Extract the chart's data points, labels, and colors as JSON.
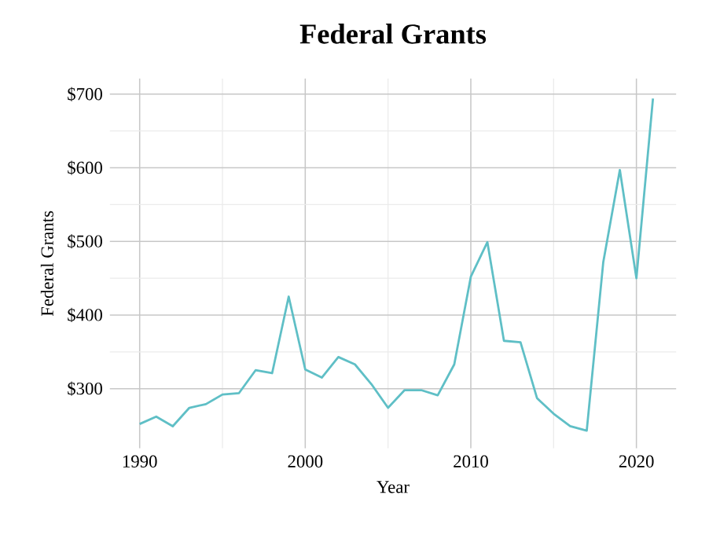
{
  "chart_data": {
    "type": "line",
    "title": "Federal Grants",
    "xlabel": "Year",
    "ylabel": "Federal Grants",
    "x": [
      1990,
      1991,
      1992,
      1993,
      1994,
      1995,
      1996,
      1997,
      1998,
      1999,
      2000,
      2001,
      2002,
      2003,
      2004,
      2005,
      2006,
      2007,
      2008,
      2009,
      2010,
      2011,
      2012,
      2013,
      2014,
      2015,
      2016,
      2017,
      2018,
      2019,
      2020,
      2021
    ],
    "series": [
      {
        "color": "#5fbfc6",
        "values": [
          252,
          262,
          249,
          274,
          279,
          292,
          294,
          325,
          321,
          425,
          326,
          315,
          343,
          333,
          306,
          274,
          298,
          298,
          291,
          333,
          452,
          499,
          365,
          363,
          287,
          266,
          249,
          243,
          472,
          597,
          450,
          694
        ]
      }
    ],
    "xlim": [
      1988.2,
      2022.4
    ],
    "ylim": [
      219,
      721
    ],
    "xticks": [
      1990,
      2000,
      2010,
      2020
    ],
    "yticks": [
      {
        "value": 300,
        "label": "$300"
      },
      {
        "value": 400,
        "label": "$400"
      },
      {
        "value": 500,
        "label": "$500"
      },
      {
        "value": 600,
        "label": "$600"
      },
      {
        "value": 700,
        "label": "$700"
      }
    ],
    "grid": true,
    "marker": "none",
    "line_style": "solid"
  }
}
